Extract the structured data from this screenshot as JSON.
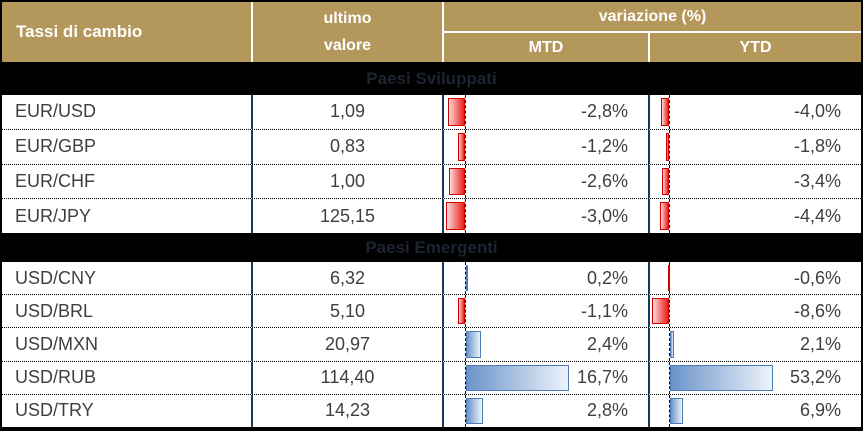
{
  "header": {
    "title": "Tassi di cambio",
    "last_value_line1": "ultimo",
    "last_value_line2": "valore",
    "variation": "variazione (%)",
    "mtd": "MTD",
    "ytd": "YTD"
  },
  "colors": {
    "gold": "#B4975A",
    "navy": "#17375E",
    "text": "#3F3F3F",
    "section_bg": "#000000",
    "section_text": "#1C2430",
    "red_border": "#D00000",
    "red_fill_light": "#FFD9D9",
    "red_fill_solid": "#EC1C1C",
    "blue_border": "#4A7CB8",
    "blue_fill_solid": "#6B94C9",
    "blue_fill_light": "#EDF3FB"
  },
  "sections": [
    {
      "label": "Paesi Sviluppati",
      "rows": [
        {
          "pair": "EUR/USD",
          "value": "1,09",
          "mtd": -2.8,
          "mtd_label": "-2,8%",
          "ytd": -4.0,
          "ytd_label": "-4,0%"
        },
        {
          "pair": "EUR/GBP",
          "value": "0,83",
          "mtd": -1.2,
          "mtd_label": "-1,2%",
          "ytd": -1.8,
          "ytd_label": "-1,8%"
        },
        {
          "pair": "EUR/CHF",
          "value": "1,00",
          "mtd": -2.6,
          "mtd_label": "-2,6%",
          "ytd": -3.4,
          "ytd_label": "-3,4%"
        },
        {
          "pair": "EUR/JPY",
          "value": "125,15",
          "mtd": -3.0,
          "mtd_label": "-3,0%",
          "ytd": -4.4,
          "ytd_label": "-4,4%"
        }
      ]
    },
    {
      "label": "Paesi Emergenti",
      "rows": [
        {
          "pair": "USD/CNY",
          "value": "6,32",
          "mtd": 0.2,
          "mtd_label": "0,2%",
          "ytd": -0.6,
          "ytd_label": "-0,6%"
        },
        {
          "pair": "USD/BRL",
          "value": "5,10",
          "mtd": -1.1,
          "mtd_label": "-1,1%",
          "ytd": -8.6,
          "ytd_label": "-8,6%"
        },
        {
          "pair": "USD/MXN",
          "value": "20,97",
          "mtd": 2.4,
          "mtd_label": "2,4%",
          "ytd": 2.1,
          "ytd_label": "2,1%"
        },
        {
          "pair": "USD/RUB",
          "value": "114,40",
          "mtd": 16.7,
          "mtd_label": "16,7%",
          "ytd": 53.2,
          "ytd_label": "53,2%"
        },
        {
          "pair": "USD/TRY",
          "value": "14,23",
          "mtd": 2.8,
          "mtd_label": "2,8%",
          "ytd": 6.9,
          "ytd_label": "6,9%"
        }
      ]
    }
  ],
  "chart_data": {
    "type": "table",
    "title": "Tassi di cambio",
    "columns": [
      "Tassi di cambio",
      "ultimo valore",
      "variazione (%) MTD",
      "variazione (%) YTD"
    ],
    "groups": [
      {
        "name": "Paesi Sviluppati",
        "rows": [
          {
            "pair": "EUR/USD",
            "ultimo_valore": 1.09,
            "mtd_pct": -2.8,
            "ytd_pct": -4.0
          },
          {
            "pair": "EUR/GBP",
            "ultimo_valore": 0.83,
            "mtd_pct": -1.2,
            "ytd_pct": -1.8
          },
          {
            "pair": "EUR/CHF",
            "ultimo_valore": 1.0,
            "mtd_pct": -2.6,
            "ytd_pct": -3.4
          },
          {
            "pair": "EUR/JPY",
            "ultimo_valore": 125.15,
            "mtd_pct": -3.0,
            "ytd_pct": -4.4
          }
        ]
      },
      {
        "name": "Paesi Emergenti",
        "rows": [
          {
            "pair": "USD/CNY",
            "ultimo_valore": 6.32,
            "mtd_pct": 0.2,
            "ytd_pct": -0.6
          },
          {
            "pair": "USD/BRL",
            "ultimo_valore": 5.1,
            "mtd_pct": -1.1,
            "ytd_pct": -8.6
          },
          {
            "pair": "USD/MXN",
            "ultimo_valore": 20.97,
            "mtd_pct": 2.4,
            "ytd_pct": 2.1
          },
          {
            "pair": "USD/RUB",
            "ultimo_valore": 114.4,
            "mtd_pct": 16.7,
            "ytd_pct": 53.2
          },
          {
            "pair": "USD/TRY",
            "ultimo_valore": 14.23,
            "mtd_pct": 2.8,
            "ytd_pct": 6.9
          }
        ]
      }
    ],
    "bar_style": {
      "negative": "red gradient bar extending left of dashed zero line",
      "positive": "blue gradient bar extending right of dashed zero line",
      "mtd_axis_max_abs": 16.7,
      "ytd_axis_max_abs": 53.2
    }
  }
}
